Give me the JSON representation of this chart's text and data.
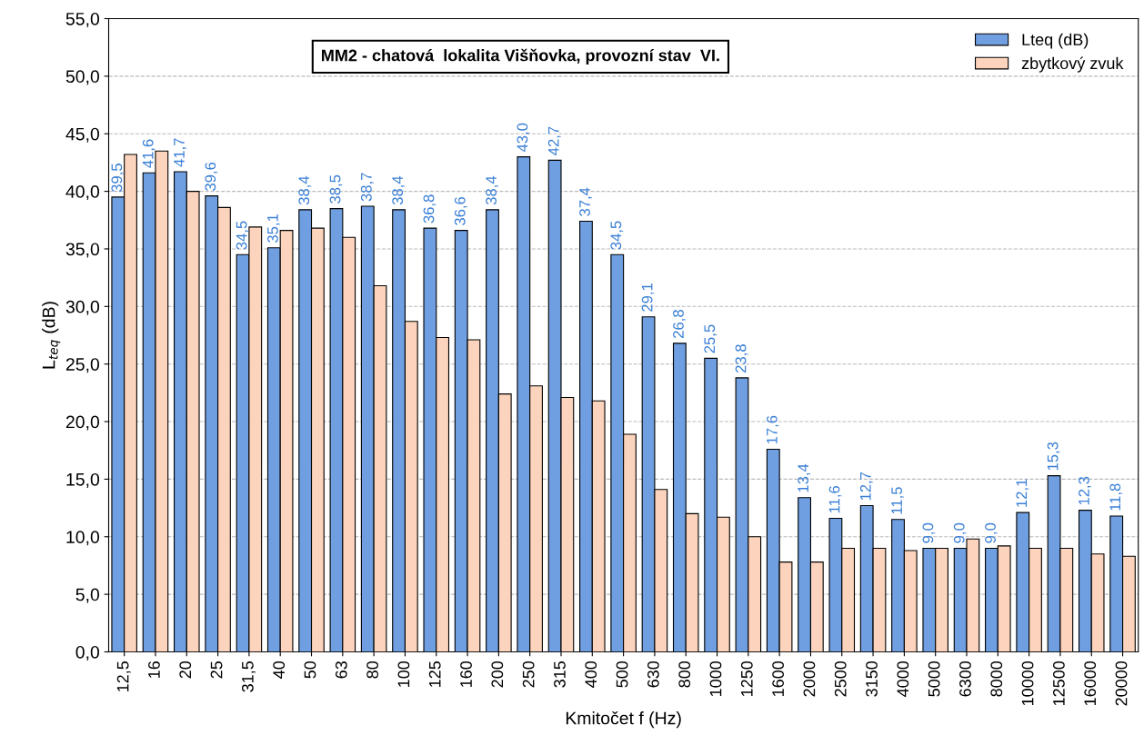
{
  "chart_data": {
    "type": "bar",
    "title": "MM2 - chatová  lokalita Višňovka, provozní stav  VI.",
    "xlabel": "Kmitočet f (Hz)",
    "ylabel": "L$_{teq}$ (dB)",
    "categories": [
      "12,5",
      "16",
      "20",
      "25",
      "31,5",
      "40",
      "50",
      "63",
      "80",
      "100",
      "125",
      "160",
      "200",
      "250",
      "315",
      "400",
      "500",
      "630",
      "800",
      "1000",
      "1250",
      "1600",
      "2000",
      "2500",
      "3150",
      "4000",
      "5000",
      "6300",
      "8000",
      "10000",
      "12500",
      "16000",
      "20000"
    ],
    "series": [
      {
        "name": "Lteq (dB)",
        "color": "#6f9fe0",
        "values": [
          39.5,
          41.6,
          41.7,
          39.6,
          34.5,
          35.1,
          38.4,
          38.5,
          38.7,
          38.4,
          36.8,
          36.6,
          38.4,
          43.0,
          42.7,
          37.4,
          34.5,
          29.1,
          26.8,
          25.5,
          23.8,
          17.6,
          13.4,
          11.6,
          12.7,
          11.5,
          9.0,
          9.0,
          9.0,
          12.1,
          15.3,
          12.3,
          11.8
        ],
        "value_labels": [
          "39,5",
          "41,6",
          "41,7",
          "39,6",
          "34,5",
          "35,1",
          "38,4",
          "38,5",
          "38,7",
          "38,4",
          "36,8",
          "36,6",
          "38,4",
          "43,0",
          "42,7",
          "37,4",
          "34,5",
          "29,1",
          "26,8",
          "25,5",
          "23,8",
          "17,6",
          "13,4",
          "11,6",
          "12,7",
          "11,5",
          "9,0",
          "9,0",
          "9,0",
          "12,1",
          "15,3",
          "12,3",
          "11,8"
        ]
      },
      {
        "name": "zbytkový zvuk",
        "color": "#fcd3bc",
        "values": [
          43.2,
          43.5,
          40.0,
          38.6,
          36.9,
          36.6,
          36.8,
          36.0,
          31.8,
          28.7,
          27.3,
          27.1,
          22.4,
          23.1,
          22.1,
          21.8,
          18.9,
          14.1,
          12.0,
          11.7,
          10.0,
          7.8,
          7.8,
          9.0,
          9.0,
          8.8,
          9.0,
          9.8,
          9.2,
          9.0,
          9.0,
          8.5,
          8.3
        ]
      }
    ],
    "ylim": [
      0,
      55
    ],
    "yticks": [
      {
        "value": 0,
        "label": "0,0"
      },
      {
        "value": 5,
        "label": "5,0"
      },
      {
        "value": 10,
        "label": "10,0"
      },
      {
        "value": 15,
        "label": "15,0"
      },
      {
        "value": 20,
        "label": "20,0"
      },
      {
        "value": 25,
        "label": "25,0"
      },
      {
        "value": 30,
        "label": "30,0"
      },
      {
        "value": 35,
        "label": "35,0"
      },
      {
        "value": 40,
        "label": "40,0"
      },
      {
        "value": 45,
        "label": "45,0"
      },
      {
        "value": 50,
        "label": "50,0"
      },
      {
        "value": 55,
        "label": "55,0"
      }
    ],
    "grid": "y",
    "legend": "top right"
  }
}
